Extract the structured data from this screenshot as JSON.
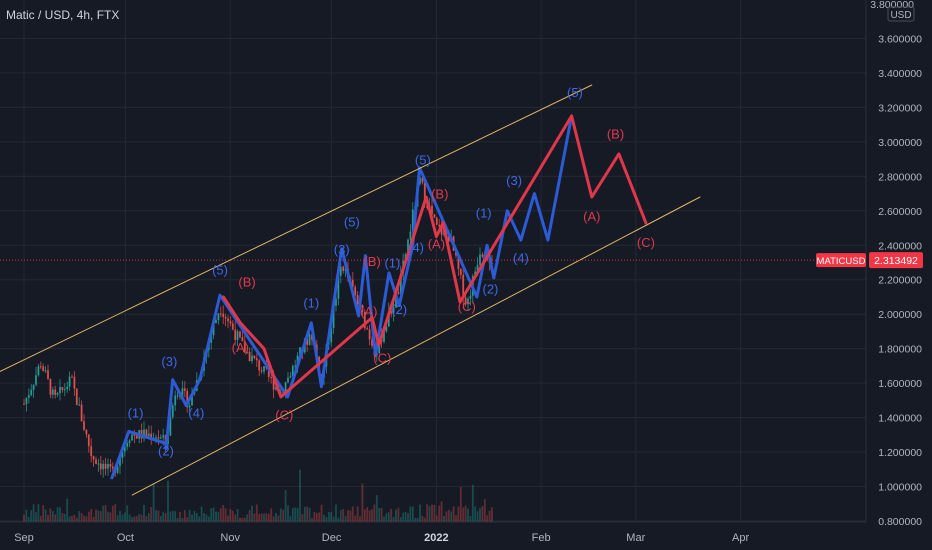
{
  "header": {
    "symbol_title": "Matic / USD, 4h, FTX"
  },
  "price_scale": {
    "currency_label": "USD",
    "top_value": "3.800000",
    "ticks": [
      "3.600000",
      "3.400000",
      "3.200000",
      "3.000000",
      "2.800000",
      "2.600000",
      "2.400000",
      "2.200000",
      "2.000000",
      "1.800000",
      "1.600000",
      "1.400000",
      "1.200000",
      "1.000000",
      "0.800000"
    ],
    "tick_values": [
      3.6,
      3.4,
      3.2,
      3.0,
      2.8,
      2.6,
      2.4,
      2.2,
      2.0,
      1.8,
      1.6,
      1.4,
      1.2,
      1.0,
      0.8
    ]
  },
  "current_price": {
    "symbol_label": "MATICUSD",
    "value_label": "2.313492",
    "value": 2.313492,
    "badge_color": "#f23645"
  },
  "time_scale": {
    "labels": [
      "Sep",
      "Oct",
      "Nov",
      "Dec",
      "2022",
      "Feb",
      "Mar",
      "Apr"
    ],
    "bold_label": "2022"
  },
  "colors": {
    "background": "#161a25",
    "grid": "#242833",
    "channel": "#f5c46a",
    "impulse": "#2c5bd6",
    "correction": "#e0374a",
    "candle_up": "#26a69a",
    "candle_down": "#ef5350",
    "wave_label_blue": "#3d68e8",
    "wave_label_red": "#e0394d"
  },
  "chart_data": {
    "type": "line",
    "title": "Matic / USD, 4h, FTX",
    "xlabel": "",
    "ylabel": "",
    "ylim": [
      0.8,
      3.8
    ],
    "x_ticks": [
      "Sep",
      "Oct",
      "Nov",
      "Dec",
      "2022",
      "Feb",
      "Mar",
      "Apr"
    ],
    "grid": true,
    "series": [
      {
        "name": "",
        "role": "impulse",
        "color": "#2c5bd6",
        "points": [
          [
            "2021-09-27",
            1.05
          ],
          [
            "2021-10-02",
            1.32
          ],
          [
            "2021-10-13",
            1.25
          ],
          [
            "2021-10-13",
            1.22
          ],
          [
            "2021-10-15",
            1.62
          ],
          [
            "2021-10-19",
            1.47
          ],
          [
            "2021-10-23",
            1.62
          ],
          [
            "2021-10-29",
            2.11
          ],
          [
            "2021-11-18",
            1.52
          ],
          [
            "2021-11-25",
            1.95
          ],
          [
            "2021-11-28",
            1.58
          ],
          [
            "2021-12-04",
            2.38
          ],
          [
            "2021-12-09",
            1.99
          ],
          [
            "2021-12-11",
            2.34
          ],
          [
            "2021-12-14",
            1.76
          ],
          [
            "2021-12-18",
            2.24
          ],
          [
            "2021-12-21",
            2.05
          ],
          [
            "2021-12-25",
            2.4
          ],
          [
            "2021-12-27",
            2.85
          ],
          [
            "2022-01-13",
            2.1
          ],
          [
            "2022-01-16",
            2.4
          ],
          [
            "2022-01-18",
            2.21
          ],
          [
            "2022-01-22",
            2.6
          ],
          [
            "2022-01-26",
            2.43
          ],
          [
            "2022-01-30",
            2.7
          ],
          [
            "2022-02-03",
            2.43
          ],
          [
            "2022-02-10",
            3.15
          ]
        ]
      },
      {
        "name": "",
        "role": "correction",
        "color": "#e0374a",
        "points": [
          [
            "2021-10-30",
            2.1
          ],
          [
            "2021-11-04",
            1.95
          ],
          [
            "2021-11-11",
            1.8
          ],
          [
            "2021-11-16",
            1.52
          ],
          [
            "2021-12-13",
            1.98
          ],
          [
            "2021-12-15",
            1.82
          ],
          [
            "2021-12-29",
            2.68
          ],
          [
            "2022-01-01",
            2.45
          ],
          [
            "2022-01-03",
            2.53
          ],
          [
            "2022-01-08",
            2.07
          ],
          [
            "2022-02-10",
            3.15
          ],
          [
            "2022-02-16",
            2.68
          ],
          [
            "2022-02-24",
            2.93
          ],
          [
            "2022-03-04",
            2.53
          ]
        ]
      },
      {
        "name": "",
        "role": "channel-upper",
        "color": "#f5c46a",
        "points": [
          [
            "2021-08-22",
            1.64
          ],
          [
            "2022-02-16",
            3.33
          ]
        ]
      },
      {
        "name": "",
        "role": "channel-lower",
        "color": "#f5c46a",
        "points": [
          [
            "2021-10-03",
            0.95
          ],
          [
            "2022-03-20",
            2.68
          ]
        ]
      }
    ],
    "annotations": [
      {
        "text": "(1)",
        "color": "blue",
        "x": "2021-10-04",
        "y": 1.4
      },
      {
        "text": "(2)",
        "color": "blue",
        "x": "2021-10-13",
        "y": 1.18
      },
      {
        "text": "(3)",
        "color": "blue",
        "x": "2021-10-14",
        "y": 1.7
      },
      {
        "text": "(4)",
        "color": "blue",
        "x": "2021-10-22",
        "y": 1.4
      },
      {
        "text": "(5)",
        "color": "blue",
        "x": "2021-10-29",
        "y": 2.23
      },
      {
        "text": "(A)",
        "color": "red",
        "x": "2021-11-04",
        "y": 1.78
      },
      {
        "text": "(B)",
        "color": "red",
        "x": "2021-11-06",
        "y": 2.16
      },
      {
        "text": "(C)",
        "color": "red",
        "x": "2021-11-17",
        "y": 1.39
      },
      {
        "text": "(1)",
        "color": "blue",
        "x": "2021-11-25",
        "y": 2.04
      },
      {
        "text": "(3)",
        "color": "blue",
        "x": "2021-12-04",
        "y": 2.35
      },
      {
        "text": "(5)",
        "color": "blue",
        "x": "2021-12-07",
        "y": 2.51
      },
      {
        "text": "(A)",
        "color": "red",
        "x": "2021-12-12",
        "y": 1.99
      },
      {
        "text": "(B)",
        "color": "red",
        "x": "2021-12-13",
        "y": 2.28
      },
      {
        "text": "(C)",
        "color": "red",
        "x": "2021-12-16",
        "y": 1.72
      },
      {
        "text": "(1)",
        "color": "blue",
        "x": "2021-12-19",
        "y": 2.27
      },
      {
        "text": "(2)",
        "color": "blue",
        "x": "2021-12-21",
        "y": 2.0
      },
      {
        "text": "(4)",
        "color": "blue",
        "x": "2021-12-26",
        "y": 2.36
      },
      {
        "text": "(5)",
        "color": "blue",
        "x": "2021-12-28",
        "y": 2.87
      },
      {
        "text": "(B)",
        "color": "red",
        "x": "2022-01-02",
        "y": 2.67
      },
      {
        "text": "(A)",
        "color": "red",
        "x": "2022-01-01",
        "y": 2.38
      },
      {
        "text": "(C)",
        "color": "red",
        "x": "2022-01-10",
        "y": 2.02
      },
      {
        "text": "(1)",
        "color": "blue",
        "x": "2022-01-15",
        "y": 2.56
      },
      {
        "text": "(2)",
        "color": "blue",
        "x": "2022-01-17",
        "y": 2.12
      },
      {
        "text": "(4)",
        "color": "blue",
        "x": "2022-01-26",
        "y": 2.3
      },
      {
        "text": "(3)",
        "color": "blue",
        "x": "2022-01-24",
        "y": 2.75
      },
      {
        "text": "(5)",
        "color": "blue",
        "x": "2022-02-11",
        "y": 3.26
      },
      {
        "text": "(A)",
        "color": "red",
        "x": "2022-02-16",
        "y": 2.54
      },
      {
        "text": "(B)",
        "color": "red",
        "x": "2022-02-23",
        "y": 3.02
      },
      {
        "text": "(C)",
        "color": "red",
        "x": "2022-03-04",
        "y": 2.39
      }
    ]
  }
}
